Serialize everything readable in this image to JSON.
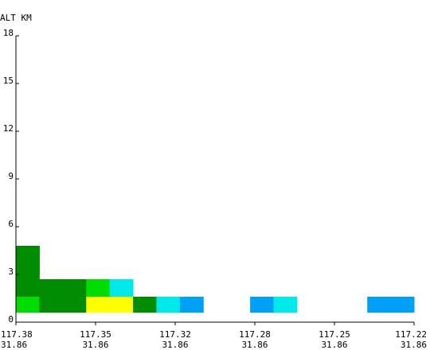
{
  "chart_data": {
    "type": "heatmap",
    "y_axis_label": "ALT KM",
    "ylim": [
      0,
      18
    ],
    "y_ticks": [
      {
        "value": 0,
        "label": "0"
      },
      {
        "value": 3,
        "label": "3"
      },
      {
        "value": 6,
        "label": "6"
      },
      {
        "value": 9,
        "label": "9"
      },
      {
        "value": 12,
        "label": "12"
      },
      {
        "value": 15,
        "label": "15"
      },
      {
        "value": 18,
        "label": "18"
      }
    ],
    "x_ticks": [
      {
        "lon": "117.38",
        "lat": "31.86"
      },
      {
        "lon": "117.35",
        "lat": "31.86"
      },
      {
        "lon": "117.32",
        "lat": "31.86"
      },
      {
        "lon": "117.28",
        "lat": "31.86"
      },
      {
        "lon": "117.25",
        "lat": "31.86"
      },
      {
        "lon": "117.22",
        "lat": "31.86"
      }
    ],
    "column_count": 17,
    "colors": {
      "dark-green": "#008c00",
      "green": "#00dc00",
      "yellow": "#ffff00",
      "cyan": "#00e8e8",
      "blue": "#00a0f6"
    },
    "cells": [
      {
        "col": 0,
        "alt_bottom": 0.6,
        "alt_top": 1.6,
        "color": "green"
      },
      {
        "col": 1,
        "alt_bottom": 0.6,
        "alt_top": 1.6,
        "color": "dark-green"
      },
      {
        "col": 2,
        "alt_bottom": 0.6,
        "alt_top": 1.6,
        "color": "dark-green"
      },
      {
        "col": 3,
        "alt_bottom": 0.6,
        "alt_top": 1.6,
        "color": "yellow"
      },
      {
        "col": 4,
        "alt_bottom": 0.6,
        "alt_top": 1.6,
        "color": "yellow"
      },
      {
        "col": 5,
        "alt_bottom": 0.6,
        "alt_top": 1.6,
        "color": "dark-green"
      },
      {
        "col": 6,
        "alt_bottom": 0.6,
        "alt_top": 1.6,
        "color": "cyan"
      },
      {
        "col": 7,
        "alt_bottom": 0.6,
        "alt_top": 1.6,
        "color": "blue"
      },
      {
        "col": 10,
        "alt_bottom": 0.6,
        "alt_top": 1.6,
        "color": "blue"
      },
      {
        "col": 11,
        "alt_bottom": 0.6,
        "alt_top": 1.6,
        "color": "cyan"
      },
      {
        "col": 15,
        "alt_bottom": 0.6,
        "alt_top": 1.6,
        "color": "blue"
      },
      {
        "col": 16,
        "alt_bottom": 0.6,
        "alt_top": 1.6,
        "color": "blue"
      },
      {
        "col": 0,
        "alt_bottom": 1.6,
        "alt_top": 2.7,
        "color": "dark-green"
      },
      {
        "col": 1,
        "alt_bottom": 1.6,
        "alt_top": 2.7,
        "color": "dark-green"
      },
      {
        "col": 2,
        "alt_bottom": 1.6,
        "alt_top": 2.7,
        "color": "dark-green"
      },
      {
        "col": 3,
        "alt_bottom": 1.6,
        "alt_top": 2.7,
        "color": "green"
      },
      {
        "col": 4,
        "alt_bottom": 1.6,
        "alt_top": 2.7,
        "color": "cyan"
      },
      {
        "col": 0,
        "alt_bottom": 2.7,
        "alt_top": 4.8,
        "color": "dark-green"
      }
    ]
  }
}
